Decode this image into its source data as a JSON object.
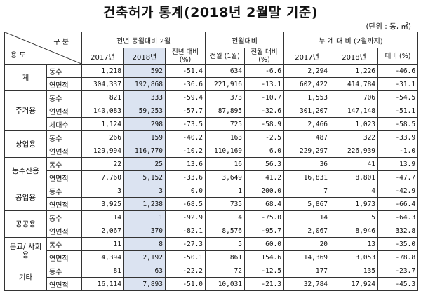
{
  "title": "건축허가 통계(2018년 2월말 기준)",
  "unit": "(단위 : 동, ㎡)",
  "header": {
    "gubun": "구 분",
    "yongdo": "용 도",
    "group1": "전년 동월대비 2월",
    "group2": "전월대비",
    "group3": "누 계 대 비 (2월까지)",
    "y2017": "2017년",
    "y2018": "2018년",
    "yoy_ratio": "전년 대비(%)",
    "prev_month": "전월 (1월)",
    "mom_ratio": "전월 대비(%)",
    "cum2017": "2017년",
    "cum2018": "2018년",
    "cum_ratio": "대비 (%)"
  },
  "categories": [
    {
      "name": "계",
      "rows": [
        {
          "item": "동수",
          "v": [
            "1,218",
            "592",
            "-51.4",
            "634",
            "-6.6",
            "2,294",
            "1,226",
            "-46.6"
          ]
        },
        {
          "item": "연면적",
          "v": [
            "304,337",
            "192,868",
            "-36.6",
            "221,916",
            "-13.1",
            "602,422",
            "414,784",
            "-31.1"
          ]
        }
      ]
    },
    {
      "name": "주거용",
      "rows": [
        {
          "item": "동수",
          "v": [
            "821",
            "333",
            "-59.4",
            "373",
            "-10.7",
            "1,553",
            "706",
            "-54.5"
          ]
        },
        {
          "item": "연면적",
          "v": [
            "140,083",
            "59,253",
            "-57.7",
            "87,895",
            "-32.6",
            "301,207",
            "147,148",
            "-51.1"
          ]
        },
        {
          "item": "세대수",
          "v": [
            "1,124",
            "298",
            "-73.5",
            "725",
            "-58.9",
            "2,466",
            "1,023",
            "-58.5"
          ]
        }
      ]
    },
    {
      "name": "상업용",
      "rows": [
        {
          "item": "동수",
          "v": [
            "266",
            "159",
            "-40.2",
            "163",
            "-2.5",
            "487",
            "322",
            "-33.9"
          ]
        },
        {
          "item": "연면적",
          "v": [
            "129,994",
            "116,770",
            "-10.2",
            "110,169",
            "6.0",
            "229,297",
            "226,939",
            "-1.0"
          ]
        }
      ]
    },
    {
      "name": "농수산용",
      "rows": [
        {
          "item": "동수",
          "v": [
            "22",
            "25",
            "13.6",
            "16",
            "56.3",
            "36",
            "41",
            "13.9"
          ]
        },
        {
          "item": "연면적",
          "v": [
            "7,760",
            "5,152",
            "-33.6",
            "3,649",
            "41.2",
            "16,831",
            "8,801",
            "-47.7"
          ]
        }
      ]
    },
    {
      "name": "공업용",
      "rows": [
        {
          "item": "동수",
          "v": [
            "3",
            "3",
            "0.0",
            "1",
            "200.0",
            "7",
            "4",
            "-42.9"
          ]
        },
        {
          "item": "연면적",
          "v": [
            "3,925",
            "1,238",
            "-68.5",
            "735",
            "68.4",
            "5,867",
            "1,973",
            "-66.4"
          ]
        }
      ]
    },
    {
      "name": "공공용",
      "rows": [
        {
          "item": "동수",
          "v": [
            "14",
            "1",
            "-92.9",
            "4",
            "-75.0",
            "14",
            "5",
            "-64.3"
          ]
        },
        {
          "item": "연면적",
          "v": [
            "2,067",
            "370",
            "-82.1",
            "8,576",
            "-95.7",
            "2,067",
            "8,946",
            "332.8"
          ]
        }
      ]
    },
    {
      "name": "문교/ 사회용",
      "rows": [
        {
          "item": "동수",
          "v": [
            "11",
            "8",
            "-27.3",
            "5",
            "60.0",
            "20",
            "13",
            "-35.0"
          ]
        },
        {
          "item": "연면적",
          "v": [
            "4,394",
            "2,192",
            "-50.1",
            "861",
            "154.6",
            "14,369",
            "3,053",
            "-78.8"
          ]
        }
      ]
    },
    {
      "name": "기타",
      "rows": [
        {
          "item": "동수",
          "v": [
            "81",
            "63",
            "-22.2",
            "72",
            "-12.5",
            "177",
            "135",
            "-23.7"
          ]
        },
        {
          "item": "연면적",
          "v": [
            "16,114",
            "7,893",
            "-51.0",
            "10,031",
            "-21.3",
            "32,784",
            "17,924",
            "-45.3"
          ]
        }
      ]
    }
  ],
  "colors": {
    "highlight": "#dbe3f1",
    "border": "#333333"
  }
}
